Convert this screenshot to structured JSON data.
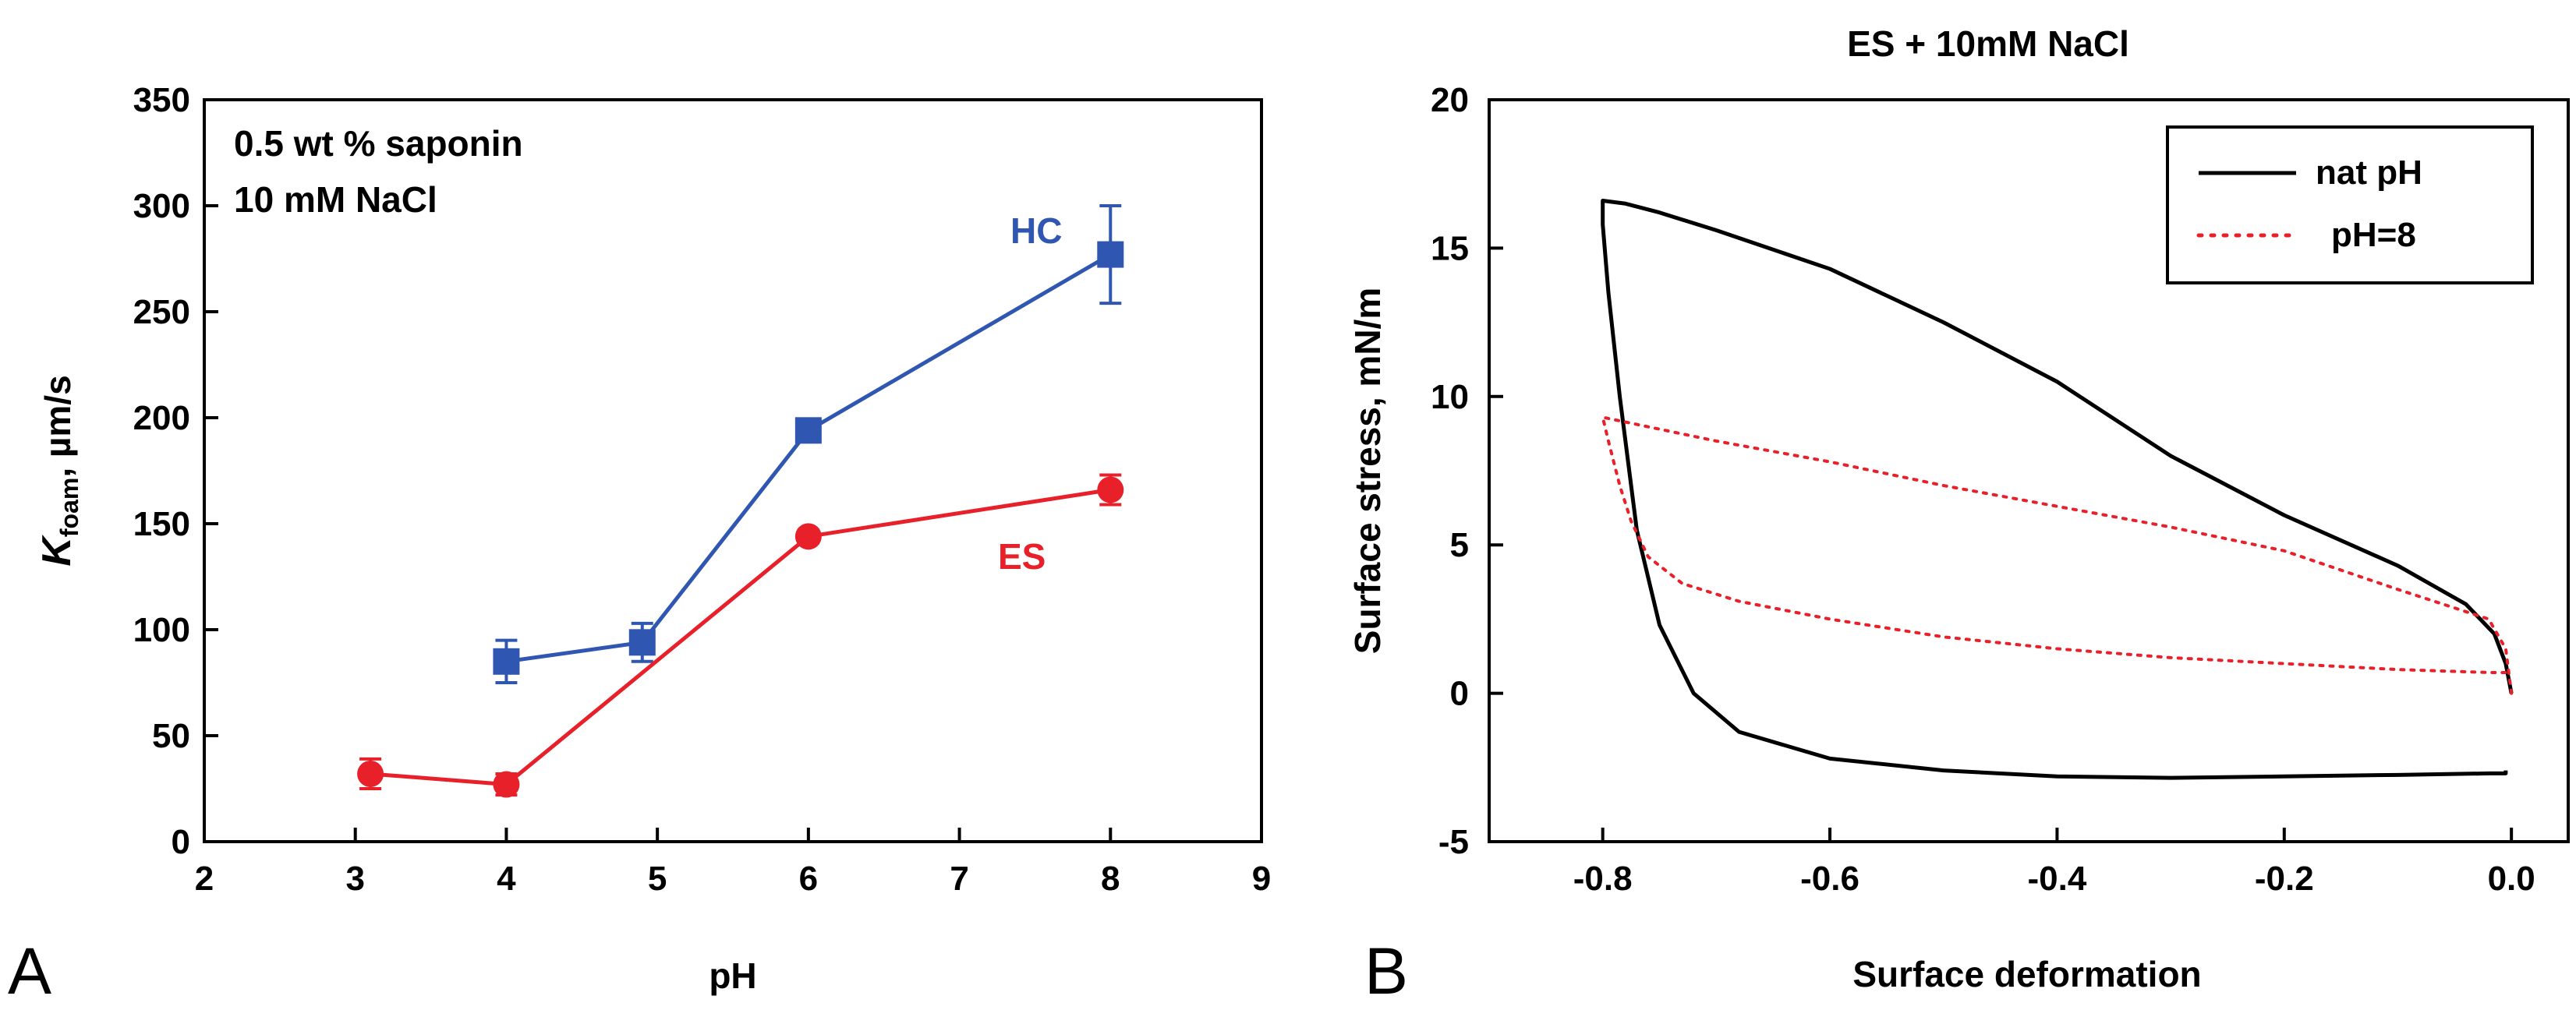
{
  "colors": {
    "hc": "#2f56b0",
    "es": "#e8202a",
    "nat_ph": "#000000",
    "ph8": "#e8202a",
    "axis": "#000000"
  },
  "chart_data": [
    {
      "panel": "A",
      "type": "line",
      "title": "",
      "xlabel": "pH",
      "ylabel_main": "K",
      "ylabel_sub": "foam",
      "ylabel_unit": ", µm/s",
      "xlim": [
        2,
        9
      ],
      "ylim": [
        0,
        350
      ],
      "xticks": [
        2,
        3,
        4,
        5,
        6,
        7,
        8,
        9
      ],
      "yticks": [
        0,
        50,
        100,
        150,
        200,
        250,
        300,
        350
      ],
      "annotations": [
        "0.5 wt % saponin",
        "10 mM NaCl"
      ],
      "series": [
        {
          "name": "HC",
          "marker": "square",
          "color": "#2f56b0",
          "x": [
            4,
            4.9,
            6,
            8
          ],
          "y": [
            85,
            94,
            194,
            277
          ],
          "err": [
            10,
            9,
            5,
            23
          ]
        },
        {
          "name": "ES",
          "marker": "circle",
          "color": "#e8202a",
          "x": [
            3.1,
            4,
            6,
            8
          ],
          "y": [
            32,
            27,
            144,
            166
          ],
          "err": [
            7,
            5,
            3,
            7
          ]
        }
      ]
    },
    {
      "panel": "B",
      "type": "line",
      "title": "ES + 10mM NaCl",
      "xlabel": "Surface deformation",
      "ylabel": "Surface stress, mN/m",
      "xlim": [
        -0.9,
        0.05
      ],
      "ylim": [
        -5,
        20
      ],
      "xticks": [
        -0.8,
        -0.6,
        -0.4,
        -0.2,
        0.0
      ],
      "xtick_labels": [
        "-0.8",
        "-0.6",
        "-0.4",
        "-0.2",
        "0.0"
      ],
      "yticks": [
        -5,
        0,
        5,
        10,
        15,
        20
      ],
      "legend": {
        "position": "top-right",
        "entries": [
          "nat pH",
          "pH=8"
        ]
      },
      "series": [
        {
          "name": "nat pH",
          "style": "solid",
          "color": "#000000",
          "x": [
            0.0,
            -0.005,
            -0.015,
            -0.04,
            -0.1,
            -0.2,
            -0.3,
            -0.4,
            -0.5,
            -0.6,
            -0.7,
            -0.75,
            -0.78,
            -0.8,
            -0.8,
            -0.795,
            -0.785,
            -0.77,
            -0.75,
            -0.72,
            -0.68,
            -0.6,
            -0.5,
            -0.4,
            -0.3,
            -0.2,
            -0.1,
            -0.02,
            -0.005,
            -0.005
          ],
          "y": [
            0.0,
            1.0,
            2.0,
            3.0,
            4.3,
            6.0,
            8.0,
            10.5,
            12.5,
            14.3,
            15.6,
            16.2,
            16.5,
            16.6,
            15.8,
            13.5,
            10.0,
            5.5,
            2.3,
            0.0,
            -1.3,
            -2.2,
            -2.6,
            -2.8,
            -2.85,
            -2.8,
            -2.75,
            -2.7,
            -2.7,
            -2.6
          ]
        },
        {
          "name": "pH=8",
          "style": "dotted",
          "color": "#e8202a",
          "x": [
            0.0,
            -0.005,
            -0.02,
            -0.1,
            -0.2,
            -0.3,
            -0.4,
            -0.5,
            -0.6,
            -0.7,
            -0.75,
            -0.8,
            -0.795,
            -0.785,
            -0.775,
            -0.76,
            -0.73,
            -0.68,
            -0.6,
            -0.5,
            -0.4,
            -0.3,
            -0.2,
            -0.1,
            -0.02,
            0.0
          ],
          "y": [
            0.0,
            1.5,
            2.5,
            3.5,
            4.8,
            5.6,
            6.3,
            7.0,
            7.8,
            8.5,
            8.9,
            9.3,
            8.5,
            7.0,
            5.8,
            4.6,
            3.7,
            3.1,
            2.5,
            1.9,
            1.5,
            1.2,
            1.0,
            0.8,
            0.7,
            0.7
          ]
        }
      ]
    }
  ],
  "panel_labels": [
    "A",
    "B"
  ]
}
